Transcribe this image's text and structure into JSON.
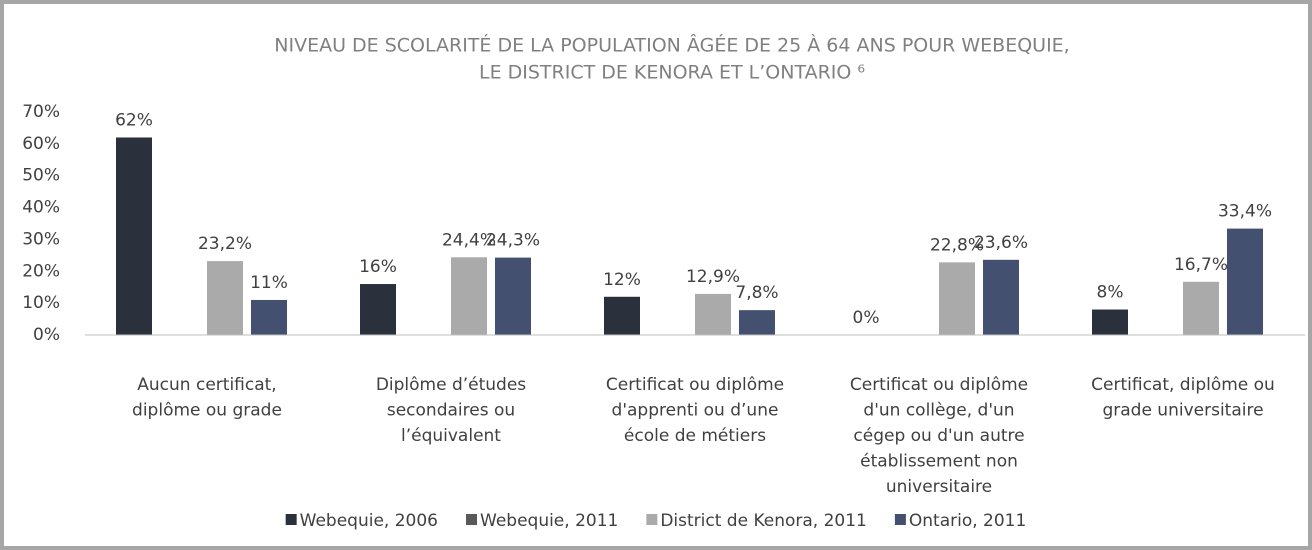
{
  "chart_data": {
    "type": "bar",
    "title": [
      "NIVEAU DE SCOLARITÉ DE LA POPULATION ÂGÉE DE 25 À 64 ANS POUR WEBEQUIE,",
      "LE DISTRICT DE KENORA ET L’ONTARIO ⁶"
    ],
    "categories": [
      [
        "Aucun certificat,",
        "diplôme ou grade"
      ],
      [
        "Diplôme d’études",
        "secondaires ou",
        "l’équivalent"
      ],
      [
        "Certificat ou diplôme",
        "d'apprenti ou d’une",
        "école de métiers"
      ],
      [
        "Certificat ou diplôme",
        "d'un collège, d'un",
        "cégep ou d'un autre",
        "établissement non",
        "universitaire"
      ],
      [
        "Certificat, diplôme ou",
        "grade universitaire"
      ]
    ],
    "series": [
      {
        "name": "Webequie, 2006",
        "color": "#2b313c",
        "values": [
          62,
          16,
          12,
          0,
          8
        ],
        "value_labels": [
          "62%",
          "16%",
          "12%",
          "0%",
          "8%"
        ]
      },
      {
        "name": "Webequie, 2011",
        "color": "#595959",
        "values": [
          null,
          null,
          null,
          null,
          null
        ]
      },
      {
        "name": "District de Kenora, 2011",
        "color": "#aaaaaa",
        "values": [
          23.2,
          24.4,
          12.9,
          22.8,
          16.7
        ],
        "value_labels": [
          "23,2%",
          "24,4%",
          "12,9%",
          "22,8%",
          "16,7%"
        ]
      },
      {
        "name": "Ontario, 2011",
        "color": "#44506f",
        "values": [
          11,
          24.3,
          7.8,
          23.6,
          33.4
        ],
        "value_labels": [
          "11%",
          "24,3%",
          "7,8%",
          "23,6%",
          "33,4%"
        ]
      }
    ],
    "ylim": [
      0,
      70
    ],
    "yticks": [
      {
        "value": 0,
        "label": "0%"
      },
      {
        "value": 10,
        "label": "10%"
      },
      {
        "value": 20,
        "label": "20%"
      },
      {
        "value": 30,
        "label": "30%"
      },
      {
        "value": 40,
        "label": "40%"
      },
      {
        "value": 50,
        "label": "50%"
      },
      {
        "value": 60,
        "label": "60%"
      },
      {
        "value": 70,
        "label": "70%"
      }
    ],
    "legend": "bottom"
  }
}
